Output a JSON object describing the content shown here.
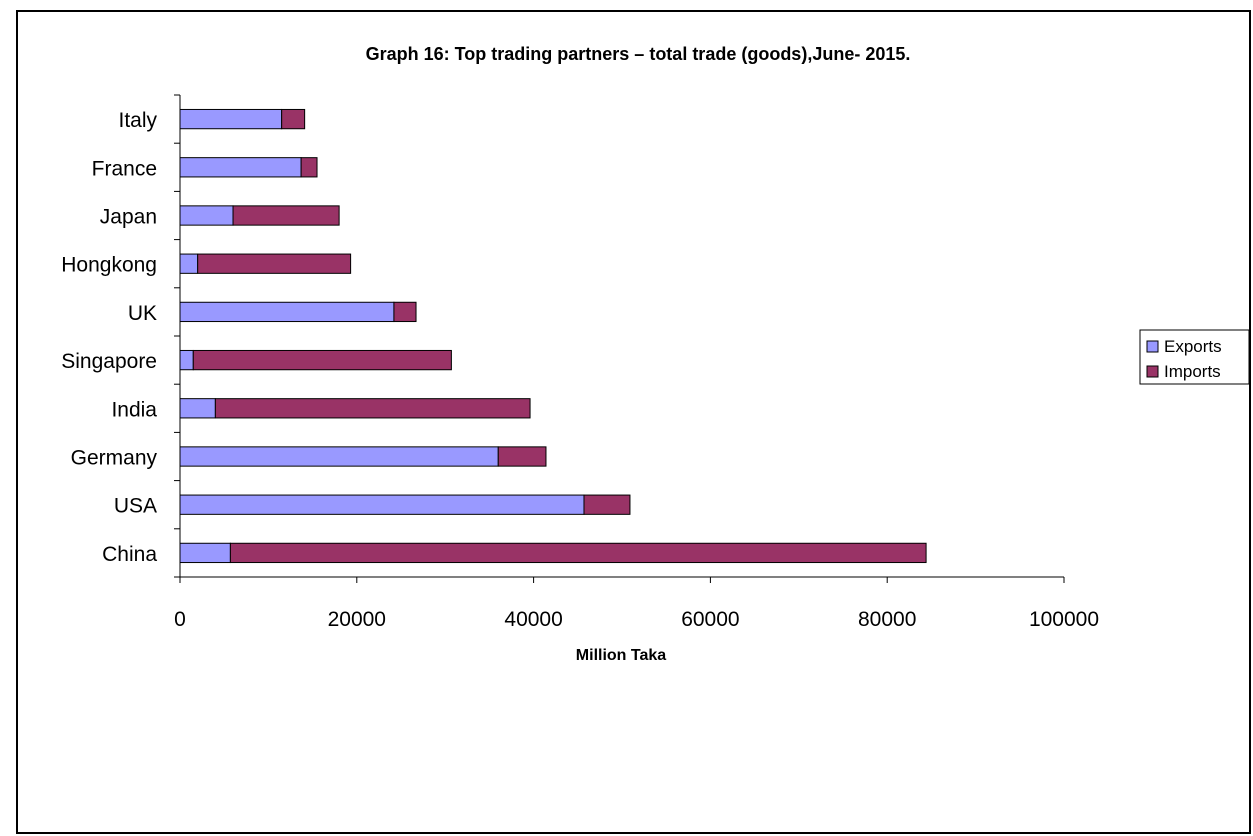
{
  "chart_data": {
    "type": "bar",
    "orientation": "horizontal",
    "stacked": true,
    "title": "Graph 16: Top trading partners – total trade (goods),June- 2015.",
    "xlabel": "Million Taka",
    "ylabel": "",
    "xlim": [
      0,
      100000
    ],
    "xticks": [
      0,
      20000,
      40000,
      60000,
      80000,
      100000
    ],
    "xtick_labels": [
      "0",
      "20000",
      "40000",
      "60000",
      "80000",
      "100000"
    ],
    "categories": [
      "Italy",
      "France",
      "Japan",
      "Hongkong",
      "UK",
      "Singapore",
      "India",
      "Germany",
      "USA",
      "China"
    ],
    "series": [
      {
        "name": "Exports",
        "color": "#9999ff",
        "values": [
          11500,
          13700,
          6000,
          2000,
          24200,
          1500,
          4000,
          36000,
          45700,
          5700
        ]
      },
      {
        "name": "Imports",
        "color": "#993366",
        "values": [
          2600,
          1800,
          12000,
          17300,
          2500,
          29200,
          35600,
          5400,
          5200,
          78700
        ]
      }
    ],
    "grid": false,
    "legend_position": "right"
  }
}
